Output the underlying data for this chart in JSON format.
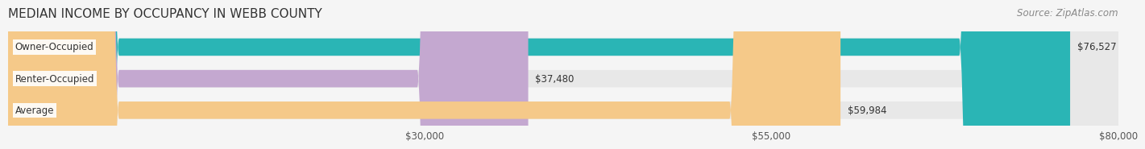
{
  "title": "MEDIAN INCOME BY OCCUPANCY IN WEBB COUNTY",
  "source": "Source: ZipAtlas.com",
  "categories": [
    "Owner-Occupied",
    "Renter-Occupied",
    "Average"
  ],
  "values": [
    76527,
    37480,
    59984
  ],
  "bar_colors": [
    "#2ab5b5",
    "#c4a8d0",
    "#f5c989"
  ],
  "value_labels": [
    "$76,527",
    "$37,480",
    "$59,984"
  ],
  "label_bg": "#ffffff",
  "xlim": [
    0,
    80000
  ],
  "xticks": [
    30000,
    55000,
    80000
  ],
  "xtick_labels": [
    "$30,000",
    "$55,000",
    "$80,000"
  ],
  "bar_height": 0.55,
  "bg_color": "#f5f5f5",
  "bar_bg_color": "#e8e8e8",
  "title_fontsize": 11,
  "source_fontsize": 8.5,
  "label_fontsize": 8.5,
  "value_fontsize": 8.5,
  "tick_fontsize": 8.5
}
